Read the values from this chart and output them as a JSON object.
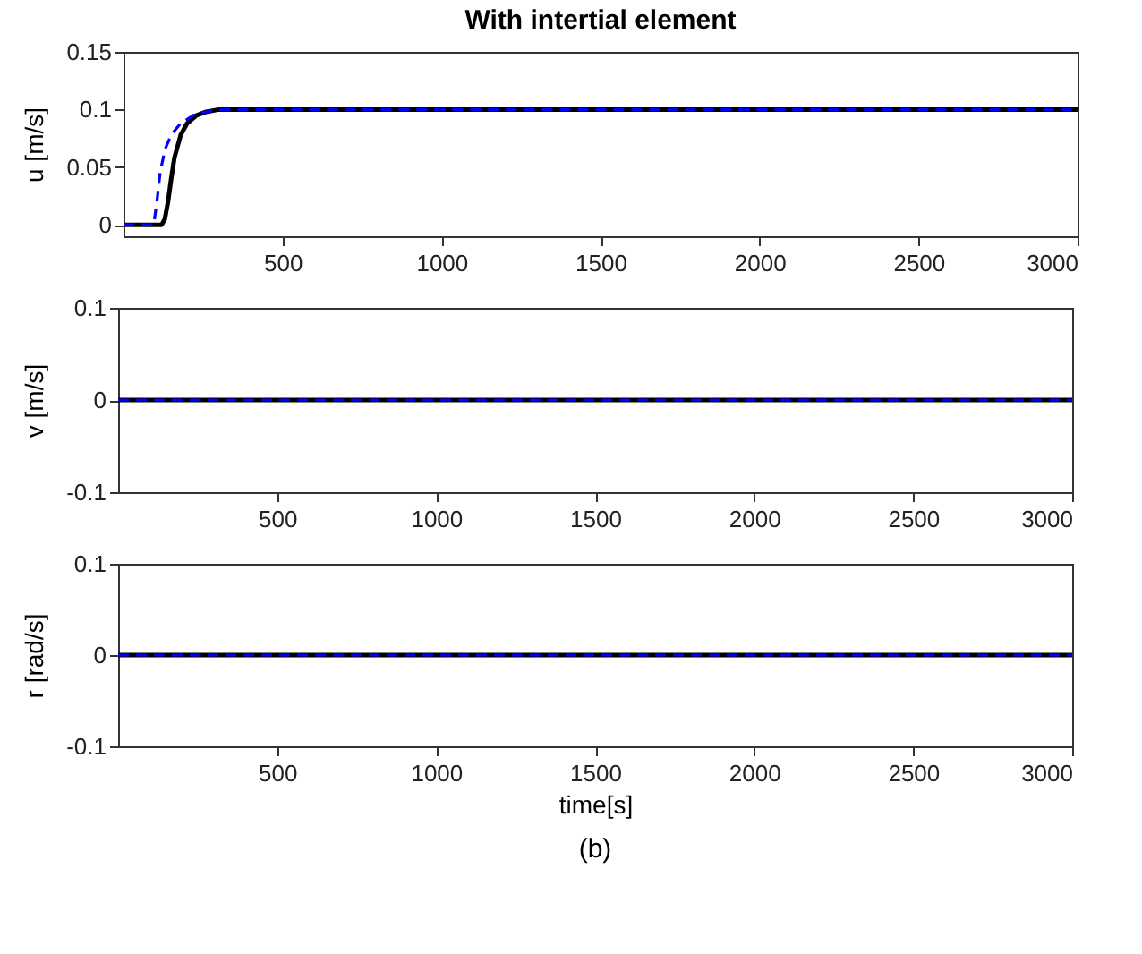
{
  "chart_data": [
    {
      "type": "line",
      "title": "With intertial element",
      "ylabel": "u [m/s]",
      "xlim": [
        0,
        3000
      ],
      "xticks": [
        500,
        1000,
        1500,
        2000,
        2500,
        3000
      ],
      "ylim": [
        -0.01,
        0.15
      ],
      "yticks": [
        0,
        0.05,
        0.1,
        0.15
      ],
      "series": [
        {
          "color": "#000000",
          "line_style": "solid",
          "x": [
            0,
            120,
            130,
            140,
            150,
            160,
            180,
            200,
            230,
            260,
            300,
            350,
            400,
            3000
          ],
          "values": [
            0,
            0,
            0.005,
            0.02,
            0.04,
            0.058,
            0.078,
            0.088,
            0.095,
            0.098,
            0.1,
            0.1,
            0.1,
            0.1
          ]
        },
        {
          "color": "#0000ff",
          "line_style": "dashed",
          "x": [
            0,
            95,
            105,
            115,
            130,
            150,
            180,
            220,
            260,
            300,
            350,
            3000
          ],
          "values": [
            0,
            0,
            0.02,
            0.045,
            0.065,
            0.078,
            0.088,
            0.095,
            0.098,
            0.1,
            0.1,
            0.1
          ]
        }
      ]
    },
    {
      "type": "line",
      "ylabel": "v [m/s]",
      "xlim": [
        0,
        3000
      ],
      "xticks": [
        500,
        1000,
        1500,
        2000,
        2500,
        3000
      ],
      "ylim": [
        -0.1,
        0.1
      ],
      "yticks": [
        -0.1,
        0,
        0.1
      ],
      "series": [
        {
          "color": "#000000",
          "line_style": "solid",
          "x": [
            0,
            3000
          ],
          "values": [
            0,
            0
          ]
        },
        {
          "color": "#0000ff",
          "line_style": "dashed",
          "x": [
            0,
            3000
          ],
          "values": [
            0,
            0
          ]
        }
      ]
    },
    {
      "type": "line",
      "ylabel": "r [rad/s]",
      "xlabel": "time[s]",
      "annotations": [
        "(b)"
      ],
      "xlim": [
        0,
        3000
      ],
      "xticks": [
        500,
        1000,
        1500,
        2000,
        2500,
        3000
      ],
      "ylim": [
        -0.1,
        0.1
      ],
      "yticks": [
        -0.1,
        0,
        0.1
      ],
      "series": [
        {
          "color": "#000000",
          "line_style": "solid",
          "x": [
            0,
            3000
          ],
          "values": [
            0,
            0
          ]
        },
        {
          "color": "#0000ff",
          "line_style": "dashed",
          "x": [
            0,
            3000
          ],
          "values": [
            0,
            0
          ]
        }
      ]
    }
  ]
}
